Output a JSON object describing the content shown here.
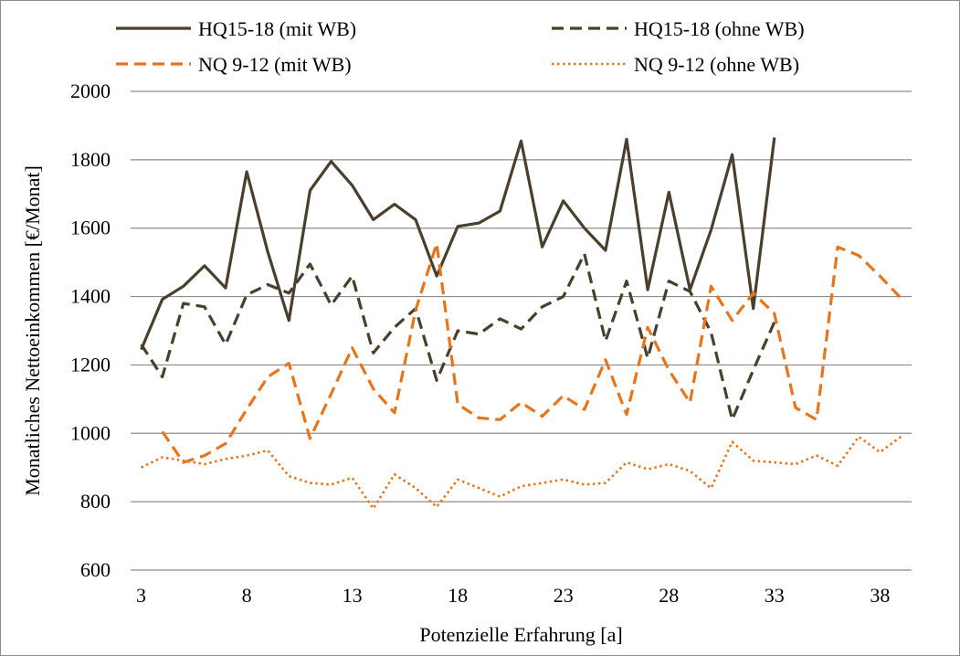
{
  "chart_data": {
    "type": "line",
    "xlabel": "Potenzielle Erfahrung [a]",
    "ylabel": "Monatliches Nettoeinkommen [€/Monat]",
    "xlim": [
      2.5,
      39.5
    ],
    "ylim": [
      600,
      2000
    ],
    "x_ticks": [
      3,
      8,
      13,
      18,
      23,
      28,
      33,
      38
    ],
    "y_ticks": [
      600,
      800,
      1000,
      1200,
      1400,
      1600,
      1800,
      2000
    ],
    "grid": "horizontal",
    "legend_position": "top",
    "series": [
      {
        "name": "HQ15-18 (mit WB)",
        "color": "#4a3f2c",
        "dash": "solid",
        "x": [
          3,
          4,
          5,
          6,
          7,
          8,
          9,
          10,
          11,
          12,
          13,
          14,
          15,
          16,
          17,
          18,
          19,
          20,
          21,
          22,
          23,
          24,
          25,
          26,
          27,
          28,
          29,
          30,
          31,
          32,
          33
        ],
        "values": [
          1245,
          1392,
          1430,
          1490,
          1425,
          1765,
          1530,
          1330,
          1710,
          1795,
          1725,
          1625,
          1670,
          1625,
          1460,
          1605,
          1615,
          1650,
          1855,
          1545,
          1680,
          1600,
          1535,
          1860,
          1420,
          1705,
          1420,
          1595,
          1815,
          1365,
          1865
        ]
      },
      {
        "name": "HQ15-18 (ohne WB)",
        "color": "#4a3f2c",
        "dash": "dashed",
        "x": [
          3,
          4,
          5,
          6,
          7,
          8,
          9,
          10,
          11,
          12,
          13,
          14,
          15,
          16,
          17,
          18,
          19,
          20,
          21,
          22,
          23,
          24,
          25,
          26,
          27,
          28,
          29,
          30,
          31,
          32,
          33
        ],
        "values": [
          1260,
          1165,
          1380,
          1370,
          1260,
          1405,
          1435,
          1410,
          1495,
          1375,
          1460,
          1235,
          1310,
          1365,
          1155,
          1300,
          1290,
          1335,
          1305,
          1370,
          1400,
          1525,
          1270,
          1445,
          1220,
          1445,
          1415,
          1295,
          1040,
          1185,
          1325
        ]
      },
      {
        "name": "NQ 9-12 (mit WB)",
        "color": "#e8741c",
        "dash": "dashed",
        "x": [
          4,
          5,
          6,
          7,
          8,
          9,
          10,
          11,
          12,
          13,
          14,
          15,
          16,
          17,
          18,
          19,
          20,
          21,
          22,
          23,
          24,
          25,
          26,
          27,
          28,
          29,
          30,
          31,
          32,
          33,
          34,
          35,
          36,
          37,
          38,
          39
        ],
        "values": [
          1005,
          915,
          935,
          970,
          1070,
          1165,
          1205,
          985,
          1115,
          1250,
          1130,
          1060,
          1360,
          1555,
          1085,
          1045,
          1040,
          1090,
          1050,
          1110,
          1070,
          1215,
          1055,
          1310,
          1185,
          1090,
          1430,
          1330,
          1410,
          1350,
          1075,
          1040,
          1545,
          1520,
          1460,
          1395
        ]
      },
      {
        "name": "NQ 9-12 (ohne WB)",
        "color": "#e8741c",
        "dash": "dotted",
        "x": [
          3,
          4,
          5,
          6,
          7,
          8,
          9,
          10,
          11,
          12,
          13,
          14,
          15,
          16,
          17,
          18,
          19,
          20,
          21,
          22,
          23,
          24,
          25,
          26,
          27,
          28,
          29,
          30,
          31,
          32,
          33,
          34,
          35,
          36,
          37,
          38,
          39
        ],
        "values": [
          900,
          930,
          920,
          910,
          925,
          935,
          950,
          875,
          855,
          850,
          870,
          780,
          880,
          840,
          785,
          865,
          840,
          815,
          845,
          855,
          865,
          850,
          855,
          915,
          895,
          910,
          890,
          840,
          975,
          920,
          915,
          910,
          935,
          905,
          990,
          945,
          990
        ]
      }
    ]
  }
}
